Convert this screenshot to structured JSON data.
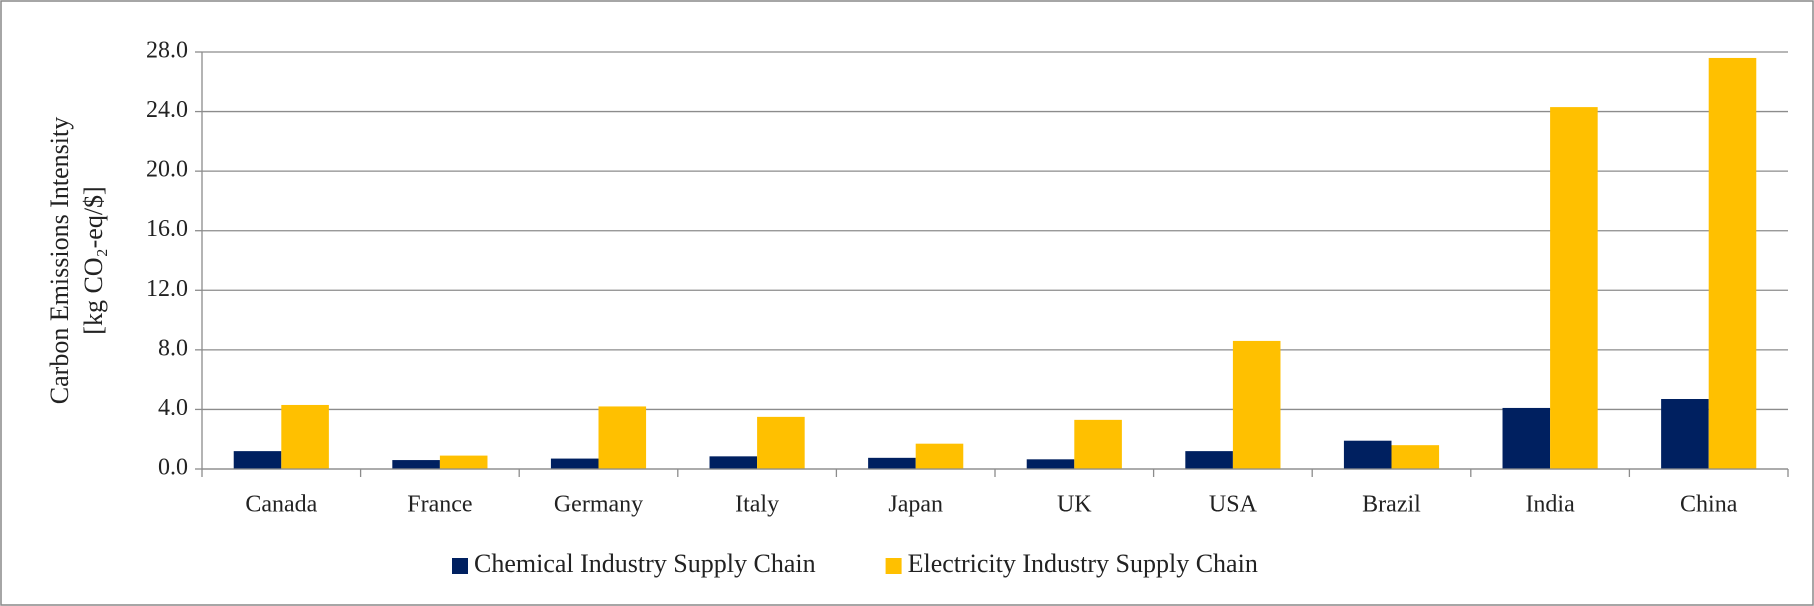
{
  "chart_data": {
    "type": "bar",
    "ylabel": [
      "Carbon Emissions Intensity",
      "[kg CO₂-eq/$]"
    ],
    "categories": [
      "Canada",
      "France",
      "Germany",
      "Italy",
      "Japan",
      "UK",
      "USA",
      "Brazil",
      "India",
      "China"
    ],
    "series": [
      {
        "name": "Chemical Industry Supply Chain",
        "color": "#002060",
        "values": [
          1.2,
          0.6,
          0.7,
          0.85,
          0.75,
          0.65,
          1.2,
          1.9,
          4.1,
          4.7
        ]
      },
      {
        "name": "Electricity Industry Supply Chain",
        "color": "#ffc000",
        "values": [
          4.3,
          0.9,
          4.2,
          3.5,
          1.7,
          3.3,
          8.6,
          1.6,
          24.3,
          27.6
        ]
      }
    ],
    "ylim": [
      0,
      28
    ],
    "yticks": [
      {
        "value": 0,
        "label": "0.0"
      },
      {
        "value": 4,
        "label": "4.0"
      },
      {
        "value": 8,
        "label": "8.0"
      },
      {
        "value": 12,
        "label": "12.0"
      },
      {
        "value": 16,
        "label": "16.0"
      },
      {
        "value": 20,
        "label": "20.0"
      },
      {
        "value": 24,
        "label": "24.0"
      },
      {
        "value": 28,
        "label": "28.0"
      }
    ],
    "grid": true,
    "legend": "bottom"
  }
}
